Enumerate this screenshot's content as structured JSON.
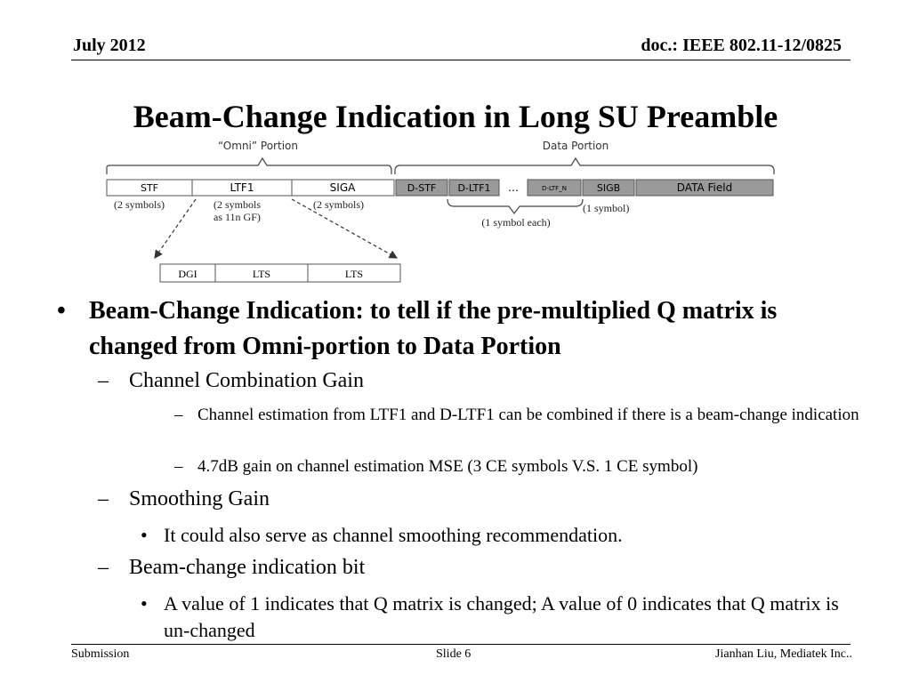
{
  "header": {
    "left": "July 2012",
    "right": "doc.: IEEE 802.11-12/0825"
  },
  "title": "Beam-Change Indication in Long SU Preamble",
  "diagram": {
    "omni_label": "“Omni” Portion",
    "data_label": "Data Portion",
    "fields": [
      "STF",
      "LTF1",
      "SIGA",
      "D-STF",
      "D-LTF1",
      "…",
      "D-LTF_N",
      "SIGB",
      "DATA Field"
    ],
    "under_stf": "(2 symbols)",
    "under_ltf1_line1": "(2 symbols",
    "under_ltf1_line2": "as 11n GF)",
    "under_siga": "(2 symbols)",
    "under_dltf": "(1 symbol each)",
    "under_sigb": "(1 symbol)",
    "detail_fields": [
      "DGI",
      "LTS",
      "LTS"
    ]
  },
  "bullet": {
    "marker": "•",
    "text": "Beam-Change Indication: to tell if the pre-multiplied Q matrix is changed from Omni-portion to Data Portion",
    "subitems": [
      {
        "marker": "–",
        "text": "Channel Combination Gain",
        "children": [
          {
            "marker": "–",
            "text": "Channel estimation from LTF1 and  D-LTF1 can be combined if there is a beam-change indication"
          },
          {
            "marker": "–",
            "text": "4.7dB gain on channel estimation MSE (3 CE symbols V.S. 1 CE symbol)"
          }
        ]
      },
      {
        "marker": "–",
        "text": "Smoothing Gain",
        "children": [
          {
            "marker": "•",
            "text": "It could also serve as channel smoothing recommendation."
          }
        ]
      },
      {
        "marker": "–",
        "text": "Beam-change indication bit",
        "children": [
          {
            "marker": "•",
            "text": "A value of 1 indicates that Q matrix is changed; A value of 0 indicates that Q matrix is un-changed"
          }
        ]
      }
    ]
  },
  "footer": {
    "left": "Submission",
    "center": "Slide 6",
    "right": "Jianhan Liu, Mediatek Inc.."
  }
}
